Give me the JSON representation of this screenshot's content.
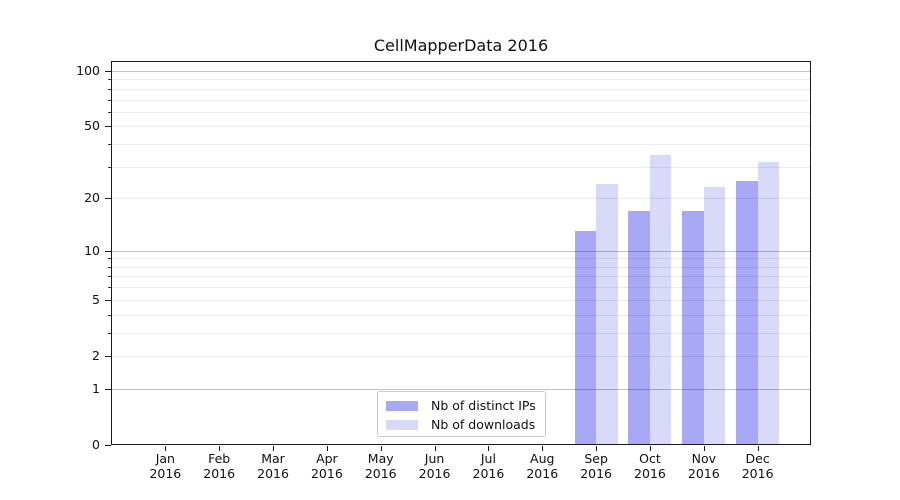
{
  "chart_data": {
    "type": "bar",
    "title": "CellMapperData 2016",
    "categories": [
      "Jan",
      "Feb",
      "Mar",
      "Apr",
      "May",
      "Jun",
      "Jul",
      "Aug",
      "Sep",
      "Oct",
      "Nov",
      "Dec"
    ],
    "category_year": "2016",
    "series": [
      {
        "name": "Nb of distinct IPs",
        "color": "#a8a8f6",
        "values": [
          0,
          0,
          0,
          0,
          0,
          0,
          0,
          0,
          13,
          17,
          17,
          25
        ]
      },
      {
        "name": "Nb of downloads",
        "color": "#d9d9f9",
        "values": [
          0,
          0,
          0,
          0,
          0,
          0,
          0,
          0,
          24,
          35,
          23,
          32
        ]
      }
    ],
    "xlabel": "",
    "ylabel": "",
    "y_axis": {
      "scale": "log1p",
      "min": 0,
      "max": 113.3,
      "tick_values": [
        0,
        1,
        2,
        5,
        10,
        20,
        50,
        100
      ],
      "tick_labels": [
        "0",
        "1",
        "2",
        "5",
        "10",
        "20",
        "50",
        "100"
      ],
      "major_grid_values": [
        1,
        10,
        100
      ],
      "minor_grid_values": [
        2,
        3,
        4,
        5,
        6,
        7,
        8,
        9,
        20,
        30,
        40,
        50,
        60,
        70,
        80,
        90
      ]
    },
    "grid": "horizontal",
    "legend": {
      "position": "lower center"
    },
    "colors": {
      "major_grid": "rgba(0,0,0,0.24)",
      "minor_grid": "rgba(0,0,0,0.075)",
      "spine": "#1a1a1a"
    }
  }
}
